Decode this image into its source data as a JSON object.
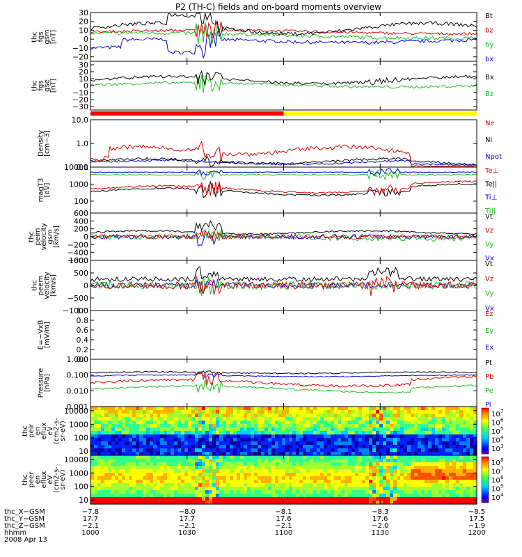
{
  "title": "P2 (TH-C) fields and on-board moments overview",
  "colors": {
    "black": "#000000",
    "red": "#e00000",
    "green": "#20c020",
    "blue": "#0000dd",
    "yellow": "#ffff00"
  },
  "chart_data": [
    {
      "id": "fgs_gsm",
      "type": "line",
      "ylabel": [
        "thc",
        "fgs",
        "gsm",
        "[nT]"
      ],
      "ylim": [
        -25,
        30
      ],
      "yticks": [
        "30",
        "20",
        "10",
        "0",
        "−10",
        "−20"
      ],
      "ytick_values": [
        30,
        20,
        10,
        0,
        -10,
        -20
      ],
      "series": [
        {
          "name": "Bt",
          "color": "black"
        },
        {
          "name": "bz",
          "color": "red"
        },
        {
          "name": "by",
          "color": "green"
        },
        {
          "name": "bx",
          "color": "blue"
        }
      ]
    },
    {
      "id": "fgs_gse",
      "type": "line",
      "ylabel": [
        "thc",
        "fgs",
        "gse",
        "[nT]"
      ],
      "ylim": [
        -35,
        35
      ],
      "yticks": [
        "30",
        "20",
        "10",
        "0",
        "−10",
        "−20",
        "−30"
      ],
      "ytick_values": [
        30,
        20,
        10,
        0,
        -10,
        -20,
        -30
      ],
      "series": [
        {
          "name": "Bx",
          "color": "black"
        },
        {
          "name": "Bz",
          "color": "green"
        }
      ]
    },
    {
      "id": "density",
      "type": "line",
      "ylabel": [
        "Density",
        "[cm−3]"
      ],
      "ylog": true,
      "ylim": [
        0.1,
        10
      ],
      "yticks": [
        "10.0",
        "1.0",
        "0.1"
      ],
      "ytick_values": [
        10,
        1,
        0.1
      ],
      "series": [
        {
          "name": "Ne",
          "color": "red"
        },
        {
          "name": "Ni",
          "color": "black"
        },
        {
          "name": "Npot",
          "color": "blue"
        }
      ]
    },
    {
      "id": "temperature",
      "type": "line",
      "ylabel": [
        "magT3",
        "[eV]"
      ],
      "ylog": true,
      "ylim": [
        20,
        10000
      ],
      "yticks": [
        "10000",
        "1000",
        "100"
      ],
      "ytick_values": [
        10000,
        1000,
        100
      ],
      "series": [
        {
          "name": "Te⊥",
          "color": "red"
        },
        {
          "name": "Te||",
          "color": "black"
        },
        {
          "name": "Ti⊥",
          "color": "blue"
        },
        {
          "name": "Ti||",
          "color": "green"
        }
      ]
    },
    {
      "id": "peim_velocity",
      "type": "line",
      "ylabel": [
        "thc",
        "peim",
        "velocity",
        "gsm",
        "[km/s]"
      ],
      "ylim": [
        -600,
        600
      ],
      "yticks": [
        "600",
        "400",
        "200",
        "0",
        "−200",
        "−400",
        "−600"
      ],
      "ytick_values": [
        600,
        400,
        200,
        0,
        -200,
        -400,
        -600
      ],
      "series": [
        {
          "name": "Vt",
          "color": "black"
        },
        {
          "name": "Vz",
          "color": "red"
        },
        {
          "name": "Vy",
          "color": "green"
        },
        {
          "name": "Vx",
          "color": "blue"
        }
      ]
    },
    {
      "id": "peem_velocity",
      "type": "line",
      "ylabel": [
        "thc",
        "peem",
        "velocity",
        "[km/s]"
      ],
      "ylim": [
        -1000,
        1000
      ],
      "yticks": [
        "1000",
        "500",
        "0",
        "−500",
        "−1000"
      ],
      "ytick_values": [
        1000,
        500,
        0,
        -500,
        -1000
      ],
      "series": [
        {
          "name": "Vt",
          "color": "black"
        },
        {
          "name": "Vz",
          "color": "red"
        },
        {
          "name": "Vy",
          "color": "green"
        },
        {
          "name": "Vx",
          "color": "blue"
        }
      ]
    },
    {
      "id": "efield",
      "type": "line",
      "ylabel": [
        "E=−VxB",
        "[mV/m]"
      ],
      "ylim": [
        0,
        1
      ],
      "yticks": [
        "1.0",
        "0.8",
        "0.6",
        "0.4",
        "0.2",
        "0.0"
      ],
      "ytick_values": [
        1,
        0.8,
        0.6,
        0.4,
        0.2,
        0
      ],
      "series": [
        {
          "name": "Ez",
          "color": "red"
        },
        {
          "name": "Ey",
          "color": "green"
        },
        {
          "name": "Ex",
          "color": "blue"
        }
      ]
    },
    {
      "id": "pressure",
      "type": "line",
      "ylabel": [
        "Pressure",
        "[nPa]"
      ],
      "ylog": true,
      "ylim": [
        0.001,
        1
      ],
      "yticks": [
        "1.000",
        "0.100",
        "0.010",
        "0.001"
      ],
      "ytick_values": [
        1,
        0.1,
        0.01,
        0.001
      ],
      "series": [
        {
          "name": "Pt",
          "color": "black"
        },
        {
          "name": "Pb",
          "color": "red"
        },
        {
          "name": "Pe",
          "color": "green"
        },
        {
          "name": "Pi",
          "color": "blue"
        }
      ]
    },
    {
      "id": "peir_spec",
      "type": "heatmap",
      "ylabel": [
        "thc",
        "peir",
        "en",
        "eflux",
        "eV",
        "(cm2-s-",
        "sr-eV)"
      ],
      "ylog": true,
      "ylim": [
        5,
        20000
      ],
      "yticks": [
        "10000",
        "1000",
        "100",
        "10"
      ],
      "ytick_values": [
        10000,
        1000,
        100,
        10
      ],
      "colorbar": {
        "ticks": [
          "10",
          "10",
          "10",
          "10",
          "10"
        ],
        "exponents": [
          "7",
          "6",
          "5",
          "4",
          "3"
        ]
      }
    },
    {
      "id": "peer_spec",
      "type": "heatmap",
      "ylabel": [
        "thc",
        "peer",
        "en",
        "eflux",
        "eV",
        "(cm2-s-",
        "sr-eV)"
      ],
      "ylog": true,
      "ylim": [
        5,
        20000
      ],
      "yticks": [
        "10000",
        "1000",
        "100",
        "10"
      ],
      "ytick_values": [
        10000,
        1000,
        100,
        10
      ],
      "colorbar": {
        "ticks": [
          "10",
          "10",
          "10",
          "10",
          "10"
        ],
        "exponents": [
          "8",
          "7",
          "6",
          "5",
          "4"
        ]
      }
    }
  ],
  "mode_bar": {
    "switch_fraction": 0.5
  },
  "x_axis": {
    "rows": [
      {
        "label": "thc_X−GSM",
        "values": [
          "−7.8",
          "−8.0",
          "−8.1",
          "−8.3",
          "−8.5"
        ]
      },
      {
        "label": "thc_Y−GSM",
        "values": [
          "17.7",
          "17.7",
          "17.6",
          "17.6",
          "17.5"
        ]
      },
      {
        "label": "thc_Z−GSM",
        "values": [
          "−2.1",
          "−2.1",
          "−2.1",
          "−2.0",
          "−1.9"
        ]
      },
      {
        "label": "hhmm",
        "values": [
          "1000",
          "1030",
          "1100",
          "1130",
          "1200"
        ]
      }
    ],
    "date": "2008 Apr 13"
  }
}
